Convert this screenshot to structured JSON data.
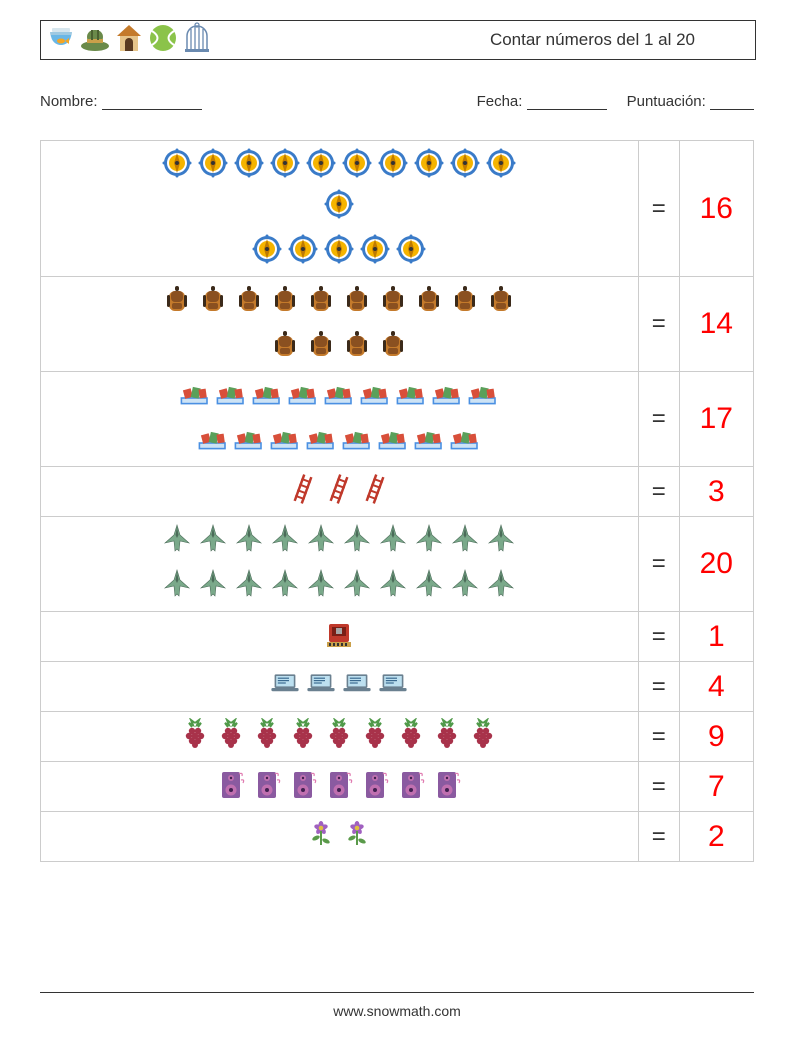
{
  "title": "Contar números del 1 al 20",
  "info": {
    "nombre": "Nombre:",
    "fecha": "Fecha:",
    "puntuacion": "Puntuación:"
  },
  "answer_color": "#ff0000",
  "eq": "=",
  "footer": "www.snowmath.com",
  "header_icons": [
    "fishbowl",
    "hat",
    "doghouse",
    "tennisball",
    "birdcage"
  ],
  "rows": [
    {
      "icon": "compass",
      "count": 16,
      "row1": 11,
      "answer": 16,
      "wrap": "narrow"
    },
    {
      "icon": "backpack",
      "count": 14,
      "row1": 10,
      "answer": 14,
      "wrap": "narrow"
    },
    {
      "icon": "books",
      "count": 17,
      "row1": 9,
      "answer": 17,
      "wrap": "narrow"
    },
    {
      "icon": "ladder",
      "count": 3,
      "row1": 3,
      "answer": 3
    },
    {
      "icon": "jet",
      "count": 20,
      "row1": 10,
      "answer": 20,
      "wrap": "narrow"
    },
    {
      "icon": "mailbox",
      "count": 1,
      "row1": 1,
      "answer": 1
    },
    {
      "icon": "laptop",
      "count": 4,
      "row1": 4,
      "answer": 4
    },
    {
      "icon": "raspberry",
      "count": 9,
      "row1": 9,
      "answer": 9
    },
    {
      "icon": "speaker",
      "count": 7,
      "row1": 7,
      "answer": 7
    },
    {
      "icon": "flower",
      "count": 2,
      "row1": 2,
      "answer": 2
    }
  ],
  "icon_colors": {
    "compass": {
      "ring": "#3a7bc8",
      "inner": "#f5b400",
      "center": "#c07a00"
    },
    "backpack": {
      "body": "#c47a2b",
      "flap": "#8a5020",
      "strap": "#3b2a1a"
    },
    "books": {
      "red": "#d84f3a",
      "green": "#5aa05a",
      "blue": "#4a90e2"
    },
    "ladder": {
      "color": "#c0392b"
    },
    "jet": {
      "body": "#7aa98a",
      "dark": "#4a6b58"
    },
    "mailbox": {
      "body": "#c0392b",
      "slot": "#7a1f16",
      "base": "#caa04a"
    },
    "laptop": {
      "screen": "#bde0f0",
      "body": "#6a8090",
      "line": "#3a6a90"
    },
    "raspberry": {
      "berry": "#a8324a",
      "leaf": "#519a4a"
    },
    "speaker": {
      "body": "#8a5aa0",
      "cone": "#c070b0",
      "dot": "#402050"
    },
    "flower": {
      "petal": "#a060c0",
      "center": "#e0c040",
      "stem": "#5a9a4a"
    },
    "fishbowl": {
      "water": "#6ab7e6",
      "bowl": "#9ec9e2",
      "fish": "#f5a623"
    },
    "hat": {
      "body": "#6a8a4a",
      "band": "#caa04a"
    },
    "doghouse": {
      "roof": "#c47a2b",
      "wall": "#e6c48a",
      "door": "#5a3a20"
    },
    "tennisball": {
      "ball": "#8bc34a",
      "line": "#ffffff"
    },
    "birdcage": {
      "bar": "#6a8ab0",
      "base": "#6a8ab0"
    }
  }
}
